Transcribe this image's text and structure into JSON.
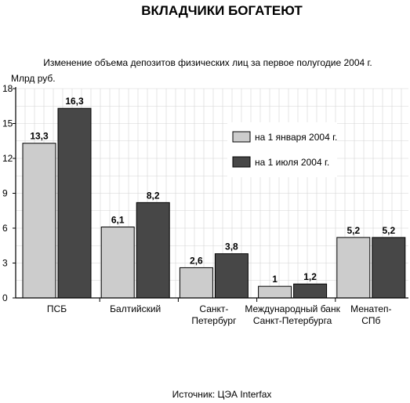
{
  "chart_data": {
    "type": "bar",
    "title": "ВКЛАДЧИКИ БОГАТЕЮТ",
    "subtitle": "Изменение объема депозитов физических лиц за первое полугодие 2004 г.",
    "ylabel": "Млрд руб.",
    "xlabel": "",
    "ylim": [
      0,
      18
    ],
    "yticks": [
      0,
      3,
      6,
      9,
      12,
      15,
      18
    ],
    "grid": true,
    "legend_position": "right",
    "categories": [
      [
        "ПСБ"
      ],
      [
        "Балтийский"
      ],
      [
        "Санкт-",
        "Петербург"
      ],
      [
        "Международный банк",
        "Санкт-Петербурга"
      ],
      [
        "Менатеп-",
        "СПб"
      ]
    ],
    "series": [
      {
        "name": "на 1 января 2004 г.",
        "color": "#cccccc",
        "values": [
          13.3,
          6.1,
          2.6,
          1,
          5.2
        ],
        "labels": [
          "13,3",
          "6,1",
          "2,6",
          "1",
          "5,2"
        ]
      },
      {
        "name": "на 1 июля 2004 г.",
        "color": "#474747",
        "values": [
          16.3,
          8.2,
          3.8,
          1.2,
          5.2
        ],
        "labels": [
          "16,3",
          "8,2",
          "3,8",
          "1,2",
          "5,2"
        ]
      }
    ],
    "source": "Источник: ЦЭА Interfax"
  }
}
